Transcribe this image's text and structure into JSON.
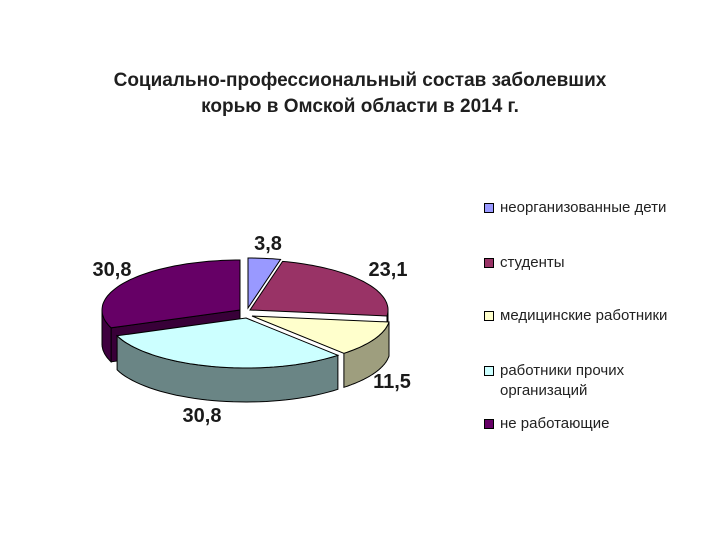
{
  "title": {
    "line1": "Социально-профессиональный состав заболевших",
    "line2": "корью в Омской области в 2014 г."
  },
  "chart_data": {
    "type": "pie",
    "title": "Социально-профессиональный состав заболевших корью в Омской области в 2014 г.",
    "style": "3d-exploded",
    "legend_position": "right",
    "slices": [
      {
        "name": "неорганизованные дети",
        "value": 3.8,
        "label": "3,8",
        "color": "#9999ff"
      },
      {
        "name": "студенты",
        "value": 23.1,
        "label": "23,1",
        "color": "#993366"
      },
      {
        "name": "медицинские работники",
        "value": 11.5,
        "label": "11,5",
        "color": "#ffffcc"
      },
      {
        "name": "работники прочих организаций",
        "value": 30.8,
        "label": "30,8",
        "color": "#ccffff"
      },
      {
        "name": "не работающие",
        "value": 30.8,
        "label": "30,8",
        "color": "#660066"
      }
    ]
  },
  "legend": {
    "items": [
      {
        "lines": [
          "неорганизованные дети"
        ],
        "color": "#9999ff"
      },
      {
        "lines": [
          "студенты"
        ],
        "color": "#993366"
      },
      {
        "lines": [
          "медицинские работники"
        ],
        "color": "#ffffcc"
      },
      {
        "lines": [
          "работники прочих",
          "организаций"
        ],
        "color": "#ccffff"
      },
      {
        "lines": [
          "не работающие"
        ],
        "color": "#660066"
      }
    ]
  }
}
